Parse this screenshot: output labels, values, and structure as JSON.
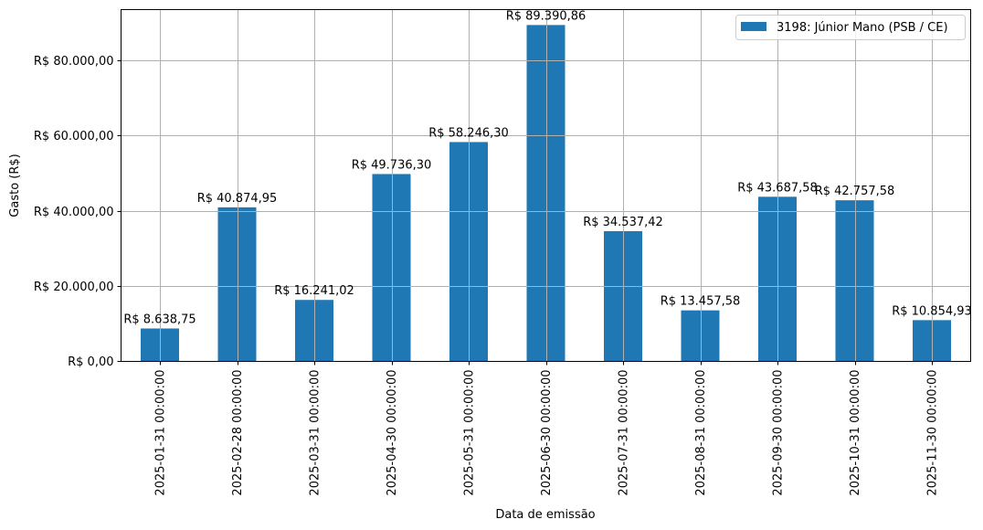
{
  "chart_data": {
    "type": "bar",
    "title": "",
    "xlabel": "Data de emissão",
    "ylabel": "Gasto (R$)",
    "ylim": [
      0,
      93859
    ],
    "grid": true,
    "legend_position": "upper right",
    "categories": [
      "2025-01-31 00:00:00",
      "2025-02-28 00:00:00",
      "2025-03-31 00:00:00",
      "2025-04-30 00:00:00",
      "2025-05-31 00:00:00",
      "2025-06-30 00:00:00",
      "2025-07-31 00:00:00",
      "2025-08-31 00:00:00",
      "2025-09-30 00:00:00",
      "2025-10-31 00:00:00",
      "2025-11-30 00:00:00"
    ],
    "series": [
      {
        "name": "3198: Júnior Mano (PSB / CE)",
        "color": "#1f77b4",
        "values": [
          8638.75,
          40874.95,
          16241.02,
          49736.3,
          58246.3,
          89390.86,
          34537.42,
          13457.58,
          43687.58,
          42757.58,
          10854.93
        ],
        "labels": [
          "R$ 8.638,75",
          "R$ 40.874,95",
          "R$ 16.241,02",
          "R$ 49.736,30",
          "R$ 58.246,30",
          "R$ 89.390,86",
          "R$ 34.537,42",
          "R$ 13.457,58",
          "R$ 43.687,58",
          "R$ 42.757,58",
          "R$ 10.854,93"
        ]
      }
    ],
    "yticks": [
      0,
      20000,
      40000,
      60000,
      80000
    ],
    "ytick_labels": [
      "R$ 0,00",
      "R$ 20.000,00",
      "R$ 40.000,00",
      "R$ 60.000,00",
      "R$ 80.000,00"
    ]
  },
  "colors": {
    "bar": "#1f77b4",
    "grid": "#b0b0b0",
    "axis": "#000000",
    "legend_border": "#cccccc"
  }
}
